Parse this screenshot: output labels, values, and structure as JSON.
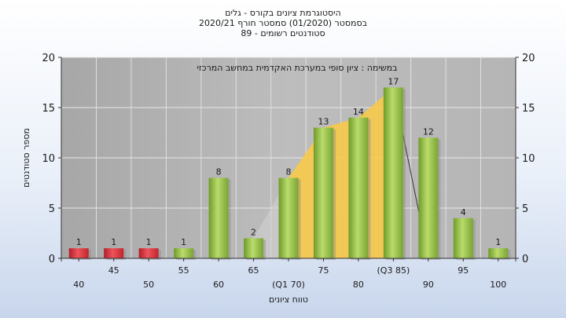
{
  "chart_data": {
    "type": "bar",
    "title_lines": [
      "היסטוגרמת ציונים בקורס - גלים",
      "בסמסטר  (01/2020)  סמסטר חורף  2020/21",
      "סטודנטים רשומים - 89"
    ],
    "subtitle": "במשימה : ציון סופי במערכת האקדמית במחשב המרכזי",
    "xlabel": "טווח ציונים",
    "ylabel": "מספר סטודנטים",
    "categories": [
      "40",
      "45",
      "50",
      "55",
      "60",
      "65",
      "(Q1 70)",
      "75",
      "80",
      "(Q3 85)",
      "90",
      "95",
      "100"
    ],
    "values": [
      1,
      1,
      1,
      1,
      8,
      2,
      8,
      13,
      14,
      17,
      12,
      4,
      1
    ],
    "data_labels": [
      "1",
      "1",
      "1",
      "1",
      "8",
      "2",
      "8",
      "13",
      "14",
      "17",
      "12",
      "4",
      "1"
    ],
    "bar_colors": [
      "red",
      "red",
      "red",
      "green",
      "green",
      "green",
      "green",
      "green",
      "green",
      "green",
      "green",
      "green",
      "green"
    ],
    "colors": {
      "red": "#d8323a",
      "green": "#9cc24e",
      "plot_bg": "#b3b3b3",
      "iqr_band": "#f7c94a",
      "grid": "#ffffff"
    },
    "ylim": [
      0,
      20
    ],
    "yticks": [
      "0",
      "5",
      "10",
      "15",
      "20"
    ],
    "right_axis": true,
    "grid": true,
    "legend": "none"
  }
}
